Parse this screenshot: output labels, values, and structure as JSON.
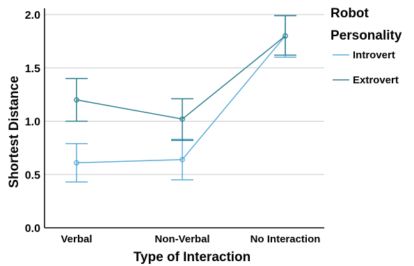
{
  "chart_data": {
    "type": "line",
    "xlabel": "Type of Interaction",
    "ylabel": "Shortest Distance",
    "categories": [
      "Verbal",
      "Non-Verbal",
      "No Interaction"
    ],
    "ylim": [
      0,
      2.0
    ],
    "yticks": [
      "0.0",
      "0.5",
      "1.0",
      "1.5",
      "2.0"
    ],
    "yticks_values": [
      0,
      0.5,
      1.0,
      1.5,
      2.0
    ],
    "grid": "horizontal",
    "legend": {
      "title_lines": [
        "Robot",
        "Personality"
      ],
      "placement": "right"
    },
    "series": [
      {
        "name": "Introvert",
        "color": "#5aaad8",
        "values": [
          0.61,
          0.64,
          1.8
        ],
        "err_low": [
          0.43,
          0.45,
          1.6
        ],
        "err_high": [
          0.79,
          0.83,
          1.99
        ]
      },
      {
        "name": "Extrovert",
        "color": "#2a7f8f",
        "values": [
          1.2,
          1.02,
          1.8
        ],
        "err_low": [
          1.0,
          0.82,
          1.62
        ],
        "err_high": [
          1.4,
          1.21,
          1.99
        ]
      }
    ]
  }
}
